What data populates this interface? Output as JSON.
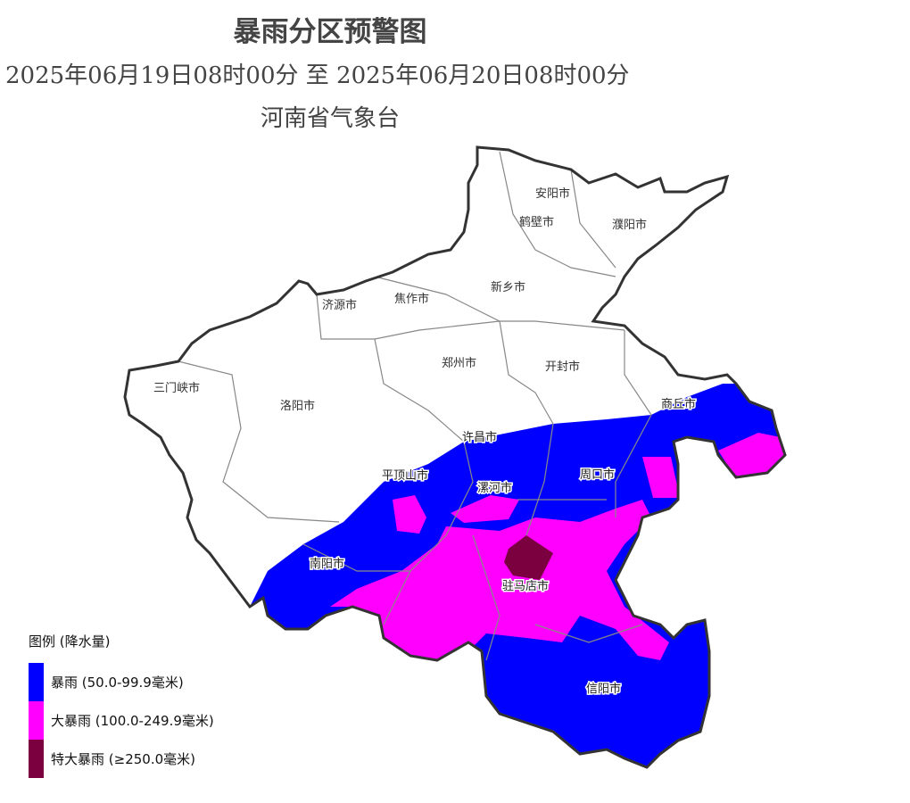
{
  "header": {
    "title": "暴雨分区预警图",
    "period": "2025年06月19日08时00分 至 2025年06月20日08时00分",
    "agency": "河南省气象台"
  },
  "map": {
    "region": "河南省",
    "cities": [
      {
        "name": "安阳市"
      },
      {
        "name": "鹤壁市"
      },
      {
        "name": "濮阳市"
      },
      {
        "name": "新乡市"
      },
      {
        "name": "焦作市"
      },
      {
        "name": "济源市"
      },
      {
        "name": "郑州市"
      },
      {
        "name": "开封市"
      },
      {
        "name": "三门峡市"
      },
      {
        "name": "洛阳市"
      },
      {
        "name": "商丘市"
      },
      {
        "name": "许昌市"
      },
      {
        "name": "平顶山市"
      },
      {
        "name": "漯河市"
      },
      {
        "name": "周口市"
      },
      {
        "name": "南阳市"
      },
      {
        "name": "驻马店市"
      },
      {
        "name": "信阳市"
      }
    ]
  },
  "legend": {
    "title": "图例 (降水量)",
    "items": [
      {
        "label": "暴雨 (50.0-99.9毫米)",
        "color": "#0000ff"
      },
      {
        "label": "大暴雨 (100.0-249.9毫米)",
        "color": "#ff00ff"
      },
      {
        "label": "特大暴雨 (≥250.0毫米)",
        "color": "#7a0040"
      }
    ]
  }
}
